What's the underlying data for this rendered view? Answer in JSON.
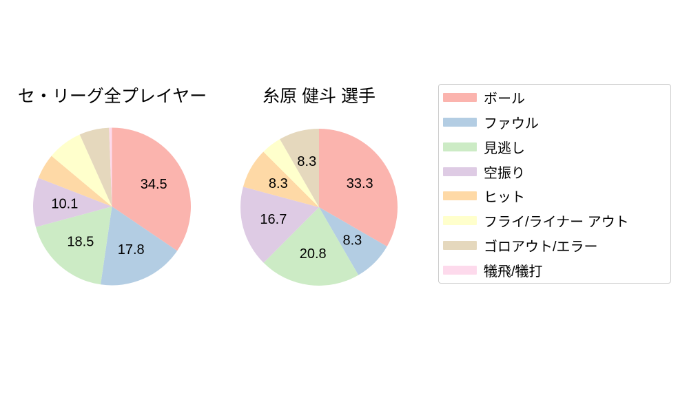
{
  "figure": {
    "background": "#ffffff"
  },
  "palette": {
    "ball": "#fbb4ae",
    "foul": "#b3cde3",
    "called_strike": "#ccebc5",
    "swinging_strike": "#decbe4",
    "hit": "#fed9a6",
    "fly_liner_out": "#ffffcc",
    "ground_out_error": "#e5d8bd",
    "sacrifice": "#fddaec"
  },
  "chart_data": [
    {
      "type": "pie",
      "title": "セ・リーグ全プレイヤー",
      "categories": [
        "ボール",
        "ファウル",
        "見逃し",
        "空振り",
        "ヒット",
        "フライ/ライナー アウト",
        "ゴロアウト/エラー",
        "犠飛/犠打"
      ],
      "values": [
        34.5,
        17.8,
        18.5,
        10.1,
        5.2,
        7.2,
        6.1,
        0.6
      ],
      "displayed_labels": [
        "34.5",
        "17.8",
        "18.5",
        "10.1",
        "",
        "",
        "",
        ""
      ],
      "colors": [
        "#fbb4ae",
        "#b3cde3",
        "#ccebc5",
        "#decbe4",
        "#fed9a6",
        "#ffffcc",
        "#e5d8bd",
        "#fddaec"
      ],
      "start_angle": "top",
      "direction": "clockwise",
      "pct_distance": 0.6,
      "legend_position": "right"
    },
    {
      "type": "pie",
      "title": "糸原 健斗 選手",
      "categories": [
        "ボール",
        "ファウル",
        "見逃し",
        "空振り",
        "ヒット",
        "フライ/ライナー アウト",
        "ゴロアウト/エラー",
        "犠飛/犠打"
      ],
      "values": [
        33.3,
        8.3,
        20.8,
        16.7,
        8.3,
        4.2,
        8.3,
        0
      ],
      "displayed_labels": [
        "33.3",
        "8.3",
        "20.8",
        "16.7",
        "8.3",
        "",
        "8.3",
        ""
      ],
      "colors": [
        "#fbb4ae",
        "#b3cde3",
        "#ccebc5",
        "#decbe4",
        "#fed9a6",
        "#ffffcc",
        "#e5d8bd",
        "#fddaec"
      ],
      "start_angle": "top",
      "direction": "clockwise",
      "pct_distance": 0.6,
      "legend_position": "right"
    }
  ],
  "legend": {
    "border_color": "#cccccc",
    "entries": [
      {
        "label": "ボール",
        "color": "#fbb4ae"
      },
      {
        "label": "ファウル",
        "color": "#b3cde3"
      },
      {
        "label": "見逃し",
        "color": "#ccebc5"
      },
      {
        "label": "空振り",
        "color": "#decbe4"
      },
      {
        "label": "ヒット",
        "color": "#fed9a6"
      },
      {
        "label": "フライ/ライナー アウト",
        "color": "#ffffcc"
      },
      {
        "label": "ゴロアウト/エラー",
        "color": "#e5d8bd"
      },
      {
        "label": "犠飛/犠打",
        "color": "#fddaec"
      }
    ]
  }
}
